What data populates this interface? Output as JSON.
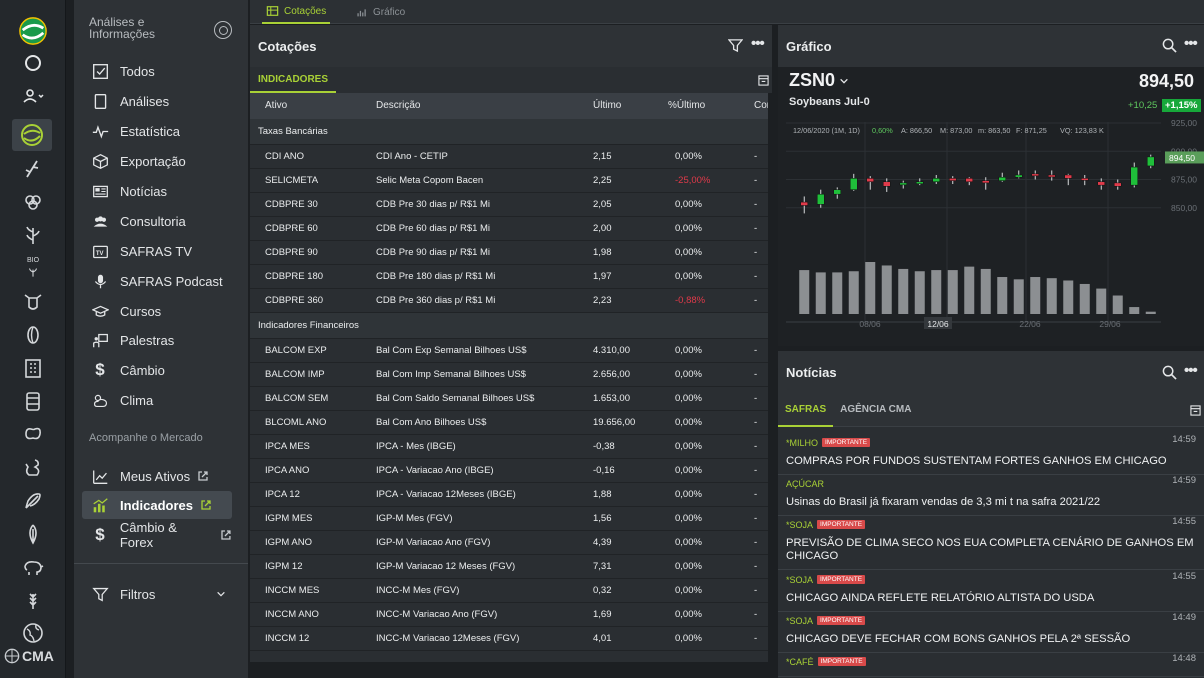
{
  "menu": {
    "header": "Análises e Informações",
    "items": [
      {
        "label": "Todos",
        "icon": "checkbox-icon"
      },
      {
        "label": "Análises",
        "icon": "document-icon"
      },
      {
        "label": "Estatística",
        "icon": "pulse-icon"
      },
      {
        "label": "Exportação",
        "icon": "box-icon"
      },
      {
        "label": "Notícias",
        "icon": "newspaper-icon"
      },
      {
        "label": "Consultoria",
        "icon": "people-icon"
      },
      {
        "label": "SAFRAS TV",
        "icon": "tv-icon"
      },
      {
        "label": "SAFRAS Podcast",
        "icon": "microphone-icon"
      },
      {
        "label": "Cursos",
        "icon": "graduation-cap-icon"
      },
      {
        "label": "Palestras",
        "icon": "presentation-icon"
      },
      {
        "label": "Câmbio",
        "icon": "dollar-icon"
      },
      {
        "label": "Clima",
        "icon": "weather-icon"
      }
    ],
    "section_mercado": "Acompanhe o Mercado",
    "mercado": [
      {
        "label": "Meus Ativos"
      },
      {
        "label": "Indicadores"
      },
      {
        "label": "Câmbio & Forex"
      }
    ],
    "filtros": "Filtros",
    "logo_text": "CMA"
  },
  "tabs": {
    "cotacoes": "Cotações",
    "grafico": "Gráfico"
  },
  "cotacoes": {
    "title": "Cotações",
    "subtab": "INDICADORES",
    "columns": [
      "Ativo",
      "Descrição",
      "Último",
      "%Último",
      "Con"
    ],
    "groups": [
      {
        "name": "Taxas Bancárias",
        "rows": [
          [
            "CDI ANO",
            "CDI Ano - CETIP",
            "2,15",
            "0,00%",
            "-"
          ],
          [
            "SELICMETA",
            "Selic Meta Copom Bacen",
            "2,25",
            "-25,00%",
            "-"
          ],
          [
            "CDBPRE 30",
            "CDB Pre 30 dias p/ R$1 Mi",
            "2,05",
            "0,00%",
            "-"
          ],
          [
            "CDBPRE 60",
            "CDB Pre 60 dias p/ R$1 Mi",
            "2,00",
            "0,00%",
            "-"
          ],
          [
            "CDBPRE 90",
            "CDB Pre 90 dias p/ R$1 Mi",
            "1,98",
            "0,00%",
            "-"
          ],
          [
            "CDBPRE 180",
            "CDB Pre 180 dias p/ R$1 Mi",
            "1,97",
            "0,00%",
            "-"
          ],
          [
            "CDBPRE 360",
            "CDB Pre 360 dias p/ R$1 Mi",
            "2,23",
            "-0,88%",
            "-"
          ]
        ]
      },
      {
        "name": "Indicadores Financeiros",
        "rows": [
          [
            "BALCOM EXP",
            "Bal Com Exp Semanal Bilhoes US$",
            "4.310,00",
            "0,00%",
            "-"
          ],
          [
            "BALCOM IMP",
            "Bal Com Imp Semanal Bilhoes US$",
            "2.656,00",
            "0,00%",
            "-"
          ],
          [
            "BALCOM SEM",
            "Bal Com Saldo Semanal Bilhoes US$",
            "1.653,00",
            "0,00%",
            "-"
          ],
          [
            "BLCOML ANO",
            "Bal Com Ano Bilhoes US$",
            "19.656,00",
            "0,00%",
            "-"
          ],
          [
            "IPCA MES",
            "IPCA - Mes (IBGE)",
            "-0,38",
            "0,00%",
            "-"
          ],
          [
            "IPCA ANO",
            "IPCA - Variacao Ano (IBGE)",
            "-0,16",
            "0,00%",
            "-"
          ],
          [
            "IPCA 12",
            "IPCA - Variacao 12Meses (IBGE)",
            "1,88",
            "0,00%",
            "-"
          ],
          [
            "IGPM MES",
            "IGP-M Mes (FGV)",
            "1,56",
            "0,00%",
            "-"
          ],
          [
            "IGPM ANO",
            "IGP-M Variacao Ano (FGV)",
            "4,39",
            "0,00%",
            "-"
          ],
          [
            "IGPM 12",
            "IGP-M Variacao 12 Meses (FGV)",
            "7,31",
            "0,00%",
            "-"
          ],
          [
            "INCCM MES",
            "INCC-M Mes (FGV)",
            "0,32",
            "0,00%",
            "-"
          ],
          [
            "INCCM ANO",
            "INCC-M Variacao Ano (FGV)",
            "1,69",
            "0,00%",
            "-"
          ],
          [
            "INCCM 12",
            "INCC-M Variacao 12Meses (FGV)",
            "4,01",
            "0,00%",
            "-"
          ]
        ]
      }
    ]
  },
  "grafico": {
    "title": "Gráfico",
    "symbol": "ZSN0",
    "desc": "Soybeans Jul-0",
    "price": "894,50",
    "change": "+10,25",
    "pct": "+1,15%",
    "info": [
      "12/06/2020 (1M, 1D)",
      "0,60%",
      "A: 866,50",
      "M: 873,00",
      "m: 863,50",
      "F: 871,25",
      "VQ: 123,83 K"
    ],
    "yticks": [
      "925,00",
      "900,00",
      "875,00",
      "850,00"
    ],
    "price_tag": "894,50",
    "xticks": [
      "08/06",
      "12/06",
      "22/06",
      "29/06"
    ],
    "highlight_x": "12/06"
  },
  "chart_data": {
    "type": "candlestick",
    "ylim": [
      825,
      925
    ],
    "candles": [
      {
        "o": 855,
        "c": 852,
        "h": 860,
        "l": 845
      },
      {
        "o": 853,
        "c": 862,
        "h": 866,
        "l": 850
      },
      {
        "o": 862,
        "c": 866,
        "h": 868,
        "l": 858
      },
      {
        "o": 866,
        "c": 876,
        "h": 880,
        "l": 865
      },
      {
        "o": 876,
        "c": 873,
        "h": 878,
        "l": 866
      },
      {
        "o": 873,
        "c": 869,
        "h": 876,
        "l": 864
      },
      {
        "o": 871,
        "c": 872,
        "h": 874,
        "l": 867
      },
      {
        "o": 872,
        "c": 873,
        "h": 876,
        "l": 870
      },
      {
        "o": 873,
        "c": 876,
        "h": 879,
        "l": 871
      },
      {
        "o": 876,
        "c": 874,
        "h": 878,
        "l": 871
      },
      {
        "o": 876,
        "c": 873,
        "h": 877,
        "l": 870
      },
      {
        "o": 874,
        "c": 872,
        "h": 877,
        "l": 866
      },
      {
        "o": 874,
        "c": 877,
        "h": 881,
        "l": 873
      },
      {
        "o": 877,
        "c": 879,
        "h": 883,
        "l": 876
      },
      {
        "o": 880,
        "c": 879,
        "h": 883,
        "l": 875
      },
      {
        "o": 879,
        "c": 878,
        "h": 883,
        "l": 874
      },
      {
        "o": 879,
        "c": 876,
        "h": 880,
        "l": 870
      },
      {
        "o": 876,
        "c": 875,
        "h": 879,
        "l": 870
      },
      {
        "o": 873,
        "c": 870,
        "h": 876,
        "l": 866
      },
      {
        "o": 872,
        "c": 869,
        "h": 875,
        "l": 866
      },
      {
        "o": 870,
        "c": 886,
        "h": 890,
        "l": 868
      },
      {
        "o": 887,
        "c": 895,
        "h": 897,
        "l": 885
      }
    ],
    "volumes": [
      38,
      36,
      36,
      37,
      45,
      42,
      39,
      37,
      38,
      38,
      41,
      39,
      32,
      30,
      32,
      31,
      29,
      26,
      22,
      16,
      6,
      2
    ]
  },
  "noticias": {
    "title": "Notícias",
    "tabs": [
      "SAFRAS",
      "AGÊNCIA CMA"
    ],
    "items": [
      {
        "cat": "*MILHO",
        "badge": "IMPORTANTE",
        "time": "14:59",
        "title": "COMPRAS POR FUNDOS SUSTENTAM FORTES GANHOS EM CHICAGO"
      },
      {
        "cat": "AÇÚCAR",
        "badge": "",
        "time": "14:59",
        "title": "Usinas do Brasil já fixaram vendas de 3,3 mi t na safra 2021/22"
      },
      {
        "cat": "*SOJA",
        "badge": "IMPORTANTE",
        "time": "14:55",
        "title": "PREVISÃO DE CLIMA SECO NOS EUA COMPLETA CENÁRIO DE GANHOS EM CHICAGO"
      },
      {
        "cat": "*SOJA",
        "badge": "IMPORTANTE",
        "time": "14:55",
        "title": "CHICAGO AINDA REFLETE RELATÓRIO ALTISTA DO USDA"
      },
      {
        "cat": "*SOJA",
        "badge": "IMPORTANTE",
        "time": "14:49",
        "title": "CHICAGO DEVE FECHAR COM BONS GANHOS PELA 2ª SESSÃO"
      },
      {
        "cat": "*CAFÉ",
        "badge": "IMPORTANTE",
        "time": "14:48",
        "title": ""
      }
    ]
  },
  "colors": {
    "accent": "#a9d136",
    "down": "#e03a4a",
    "up": "#1fbf3a"
  }
}
